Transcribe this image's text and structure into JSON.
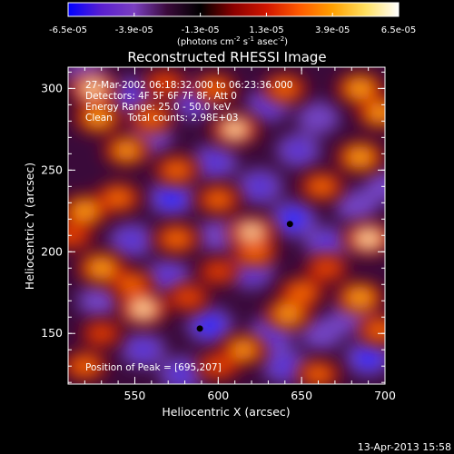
{
  "chart_data": {
    "type": "heatmap",
    "title": "Reconstructed RHESSI Image",
    "xlabel": "Heliocentric X (arcsec)",
    "ylabel": "Heliocentric Y (arcsec)",
    "xlim": [
      510,
      700
    ],
    "ylim": [
      119,
      313
    ],
    "x_ticks": [
      550,
      600,
      650,
      700
    ],
    "y_ticks": [
      150,
      200,
      250,
      300
    ],
    "colorbar": {
      "min": -6.5e-05,
      "max": 6.5e-05,
      "tick_labels": [
        "-6.5e-05",
        "-3.9e-05",
        "-1.3e-05",
        "1.3e-05",
        "3.9e-05",
        "6.5e-05"
      ],
      "units_main": "(photons cm",
      "units_exp1": "-2",
      "units_mid": " s",
      "units_exp2": "-1",
      "units_end": " asec",
      "units_exp3": "-2",
      "units_close": ")",
      "colormap": [
        "#0000ff",
        "#5a1fd0",
        "#7a3fc0",
        "#3a0a3a",
        "#000000",
        "#8a0000",
        "#d01500",
        "#ff5a00",
        "#ffa000",
        "#ffe060",
        "#ffffff"
      ]
    },
    "annotations": {
      "time_range": "27-Mar-2002 06:18:32.000 to 06:23:36.000",
      "detectors": "Detectors: 4F 5F 6F 7F 8F, Att 0",
      "energy": "Energy Range: 25.0 - 50.0 keV",
      "clean": "Clean     Total counts: 2.98E+03",
      "peak": "Position of Peak = [695,207]"
    },
    "markers": [
      {
        "x": 643,
        "y": 217
      },
      {
        "x": 589,
        "y": 153
      }
    ],
    "bright_blobs": [
      {
        "x": 525,
        "y": 300,
        "v": 0.95
      },
      {
        "x": 528,
        "y": 282,
        "v": 0.85
      },
      {
        "x": 560,
        "y": 282,
        "v": 0.7
      },
      {
        "x": 568,
        "y": 303,
        "v": 0.6
      },
      {
        "x": 545,
        "y": 262,
        "v": 0.8
      },
      {
        "x": 520,
        "y": 225,
        "v": 0.9
      },
      {
        "x": 540,
        "y": 233,
        "v": 0.75
      },
      {
        "x": 575,
        "y": 250,
        "v": 0.7
      },
      {
        "x": 610,
        "y": 275,
        "v": 0.95
      },
      {
        "x": 598,
        "y": 300,
        "v": 0.7
      },
      {
        "x": 640,
        "y": 300,
        "v": 0.7
      },
      {
        "x": 685,
        "y": 300,
        "v": 0.9
      },
      {
        "x": 697,
        "y": 285,
        "v": 0.85
      },
      {
        "x": 685,
        "y": 258,
        "v": 0.9
      },
      {
        "x": 662,
        "y": 240,
        "v": 0.7
      },
      {
        "x": 600,
        "y": 232,
        "v": 0.7
      },
      {
        "x": 620,
        "y": 212,
        "v": 0.95
      },
      {
        "x": 622,
        "y": 200,
        "v": 0.75
      },
      {
        "x": 690,
        "y": 208,
        "v": 1.0
      },
      {
        "x": 665,
        "y": 190,
        "v": 0.6
      },
      {
        "x": 530,
        "y": 190,
        "v": 0.9
      },
      {
        "x": 548,
        "y": 180,
        "v": 0.7
      },
      {
        "x": 512,
        "y": 210,
        "v": 0.6
      },
      {
        "x": 575,
        "y": 208,
        "v": 0.75
      },
      {
        "x": 555,
        "y": 165,
        "v": 1.0
      },
      {
        "x": 582,
        "y": 172,
        "v": 0.6
      },
      {
        "x": 600,
        "y": 188,
        "v": 0.5
      },
      {
        "x": 650,
        "y": 175,
        "v": 0.75
      },
      {
        "x": 642,
        "y": 162,
        "v": 0.85
      },
      {
        "x": 685,
        "y": 172,
        "v": 0.9
      },
      {
        "x": 697,
        "y": 152,
        "v": 0.7
      },
      {
        "x": 615,
        "y": 140,
        "v": 0.8
      },
      {
        "x": 600,
        "y": 130,
        "v": 0.6
      },
      {
        "x": 520,
        "y": 130,
        "v": 0.7
      },
      {
        "x": 660,
        "y": 125,
        "v": 0.65
      },
      {
        "x": 530,
        "y": 150,
        "v": 0.5
      }
    ],
    "dark_blobs": [
      {
        "x": 520,
        "y": 310,
        "v": 0.5
      },
      {
        "x": 548,
        "y": 295,
        "v": 0.9
      },
      {
        "x": 560,
        "y": 270,
        "v": 0.6
      },
      {
        "x": 585,
        "y": 292,
        "v": 0.8
      },
      {
        "x": 630,
        "y": 290,
        "v": 0.8
      },
      {
        "x": 660,
        "y": 282,
        "v": 0.7
      },
      {
        "x": 648,
        "y": 262,
        "v": 0.8
      },
      {
        "x": 598,
        "y": 255,
        "v": 0.9
      },
      {
        "x": 572,
        "y": 233,
        "v": 1.0
      },
      {
        "x": 625,
        "y": 240,
        "v": 0.9
      },
      {
        "x": 645,
        "y": 220,
        "v": 1.0
      },
      {
        "x": 683,
        "y": 228,
        "v": 0.7
      },
      {
        "x": 548,
        "y": 207,
        "v": 0.85
      },
      {
        "x": 600,
        "y": 210,
        "v": 0.7
      },
      {
        "x": 620,
        "y": 188,
        "v": 0.85
      },
      {
        "x": 665,
        "y": 205,
        "v": 0.8
      },
      {
        "x": 528,
        "y": 170,
        "v": 0.6
      },
      {
        "x": 570,
        "y": 185,
        "v": 0.8
      },
      {
        "x": 595,
        "y": 155,
        "v": 1.0
      },
      {
        "x": 632,
        "y": 150,
        "v": 0.9
      },
      {
        "x": 680,
        "y": 160,
        "v": 0.7
      },
      {
        "x": 555,
        "y": 140,
        "v": 0.85
      },
      {
        "x": 578,
        "y": 125,
        "v": 0.9
      },
      {
        "x": 640,
        "y": 130,
        "v": 0.9
      },
      {
        "x": 690,
        "y": 135,
        "v": 0.95
      },
      {
        "x": 662,
        "y": 150,
        "v": 0.7
      },
      {
        "x": 700,
        "y": 240,
        "v": 0.6
      }
    ]
  },
  "footer": {
    "timestamp": "13-Apr-2013 15:58"
  }
}
